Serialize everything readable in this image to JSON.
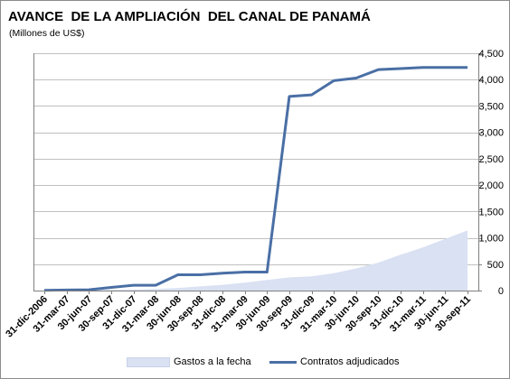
{
  "title": "AVANCE  DE LA AMPLIACIÓN  DEL CANAL DE PANAMÁ",
  "subtitle": "(Millones de US$)",
  "colors": {
    "area_fill": "#d9e1f2",
    "line": "#4a6fa5",
    "gridline": "#c0c0c0",
    "axis": "#808080"
  },
  "chart_data": {
    "type": "line",
    "title": "AVANCE  DE LA AMPLIACIÓN  DEL CANAL DE PANAMÁ",
    "subtitle": "(Millones de US$)",
    "x": [
      "31-dic-2006",
      "31-mar-07",
      "30-jun-07",
      "30-sep-07",
      "31-dic-07",
      "31-mar-08",
      "30-jun-08",
      "30-sep-08",
      "31-dic-08",
      "31-mar-09",
      "30-jun-09",
      "30-sep-09",
      "31-dic-09",
      "31-mar-10",
      "30-jun-10",
      "30-sep-10",
      "31-dic-10",
      "31-mar-11",
      "30-jun-11",
      "30-sep-11"
    ],
    "series": [
      {
        "name": "Gastos a la fecha",
        "kind": "area",
        "values": [
          5,
          8,
          10,
          15,
          20,
          30,
          50,
          80,
          110,
          150,
          200,
          250,
          270,
          330,
          420,
          530,
          680,
          820,
          980,
          1140
        ]
      },
      {
        "name": "Contratos adjudicados",
        "kind": "line",
        "values": [
          5,
          10,
          15,
          60,
          100,
          100,
          300,
          300,
          330,
          350,
          350,
          3680,
          3710,
          3980,
          4030,
          4190,
          4210,
          4230,
          4230,
          4230
        ]
      }
    ],
    "y_axis_side": "right",
    "yticks": [
      "0",
      "500",
      "1,000",
      "1,500",
      "2,000",
      "2,500",
      "3,000",
      "3,500",
      "4,000",
      "4,500"
    ],
    "ylim": [
      0,
      4500
    ],
    "grid": true,
    "legend_position": "bottom"
  }
}
